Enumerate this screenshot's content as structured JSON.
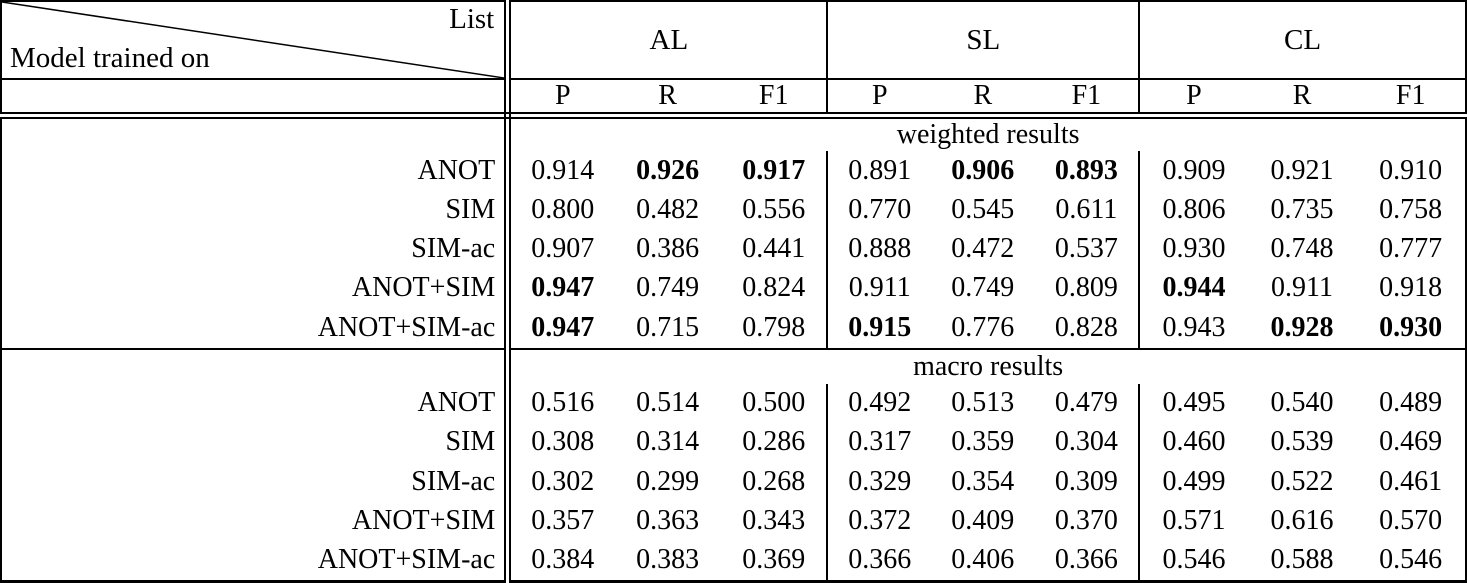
{
  "colors": {
    "background": "#ffffff",
    "text": "#000000",
    "rule": "#000000"
  },
  "table": {
    "corner": {
      "top_label": "List",
      "bottom_label": "Model trained on"
    },
    "groups": [
      "AL",
      "SL",
      "CL"
    ],
    "metrics": [
      "P",
      "R",
      "F1"
    ],
    "sections": [
      {
        "title": "weighted results",
        "rows": [
          {
            "model": "ANOT",
            "cells": [
              {
                "v": "0.914",
                "b": false
              },
              {
                "v": "0.926",
                "b": true
              },
              {
                "v": "0.917",
                "b": true
              },
              {
                "v": "0.891",
                "b": false
              },
              {
                "v": "0.906",
                "b": true
              },
              {
                "v": "0.893",
                "b": true
              },
              {
                "v": "0.909",
                "b": false
              },
              {
                "v": "0.921",
                "b": false
              },
              {
                "v": "0.910",
                "b": false
              }
            ]
          },
          {
            "model": "SIM",
            "cells": [
              {
                "v": "0.800",
                "b": false
              },
              {
                "v": "0.482",
                "b": false
              },
              {
                "v": "0.556",
                "b": false
              },
              {
                "v": "0.770",
                "b": false
              },
              {
                "v": "0.545",
                "b": false
              },
              {
                "v": "0.611",
                "b": false
              },
              {
                "v": "0.806",
                "b": false
              },
              {
                "v": "0.735",
                "b": false
              },
              {
                "v": "0.758",
                "b": false
              }
            ]
          },
          {
            "model": "SIM-ac",
            "cells": [
              {
                "v": "0.907",
                "b": false
              },
              {
                "v": "0.386",
                "b": false
              },
              {
                "v": "0.441",
                "b": false
              },
              {
                "v": "0.888",
                "b": false
              },
              {
                "v": "0.472",
                "b": false
              },
              {
                "v": "0.537",
                "b": false
              },
              {
                "v": "0.930",
                "b": false
              },
              {
                "v": "0.748",
                "b": false
              },
              {
                "v": "0.777",
                "b": false
              }
            ]
          },
          {
            "model": "ANOT+SIM",
            "cells": [
              {
                "v": "0.947",
                "b": true
              },
              {
                "v": "0.749",
                "b": false
              },
              {
                "v": "0.824",
                "b": false
              },
              {
                "v": "0.911",
                "b": false
              },
              {
                "v": "0.749",
                "b": false
              },
              {
                "v": "0.809",
                "b": false
              },
              {
                "v": "0.944",
                "b": true
              },
              {
                "v": "0.911",
                "b": false
              },
              {
                "v": "0.918",
                "b": false
              }
            ]
          },
          {
            "model": "ANOT+SIM-ac",
            "cells": [
              {
                "v": "0.947",
                "b": true
              },
              {
                "v": "0.715",
                "b": false
              },
              {
                "v": "0.798",
                "b": false
              },
              {
                "v": "0.915",
                "b": true
              },
              {
                "v": "0.776",
                "b": false
              },
              {
                "v": "0.828",
                "b": false
              },
              {
                "v": "0.943",
                "b": false
              },
              {
                "v": "0.928",
                "b": true
              },
              {
                "v": "0.930",
                "b": true
              }
            ]
          }
        ]
      },
      {
        "title": "macro results",
        "rows": [
          {
            "model": "ANOT",
            "cells": [
              {
                "v": "0.516",
                "b": false
              },
              {
                "v": "0.514",
                "b": false
              },
              {
                "v": "0.500",
                "b": false
              },
              {
                "v": "0.492",
                "b": false
              },
              {
                "v": "0.513",
                "b": false
              },
              {
                "v": "0.479",
                "b": false
              },
              {
                "v": "0.495",
                "b": false
              },
              {
                "v": "0.540",
                "b": false
              },
              {
                "v": "0.489",
                "b": false
              }
            ]
          },
          {
            "model": "SIM",
            "cells": [
              {
                "v": "0.308",
                "b": false
              },
              {
                "v": "0.314",
                "b": false
              },
              {
                "v": "0.286",
                "b": false
              },
              {
                "v": "0.317",
                "b": false
              },
              {
                "v": "0.359",
                "b": false
              },
              {
                "v": "0.304",
                "b": false
              },
              {
                "v": "0.460",
                "b": false
              },
              {
                "v": "0.539",
                "b": false
              },
              {
                "v": "0.469",
                "b": false
              }
            ]
          },
          {
            "model": "SIM-ac",
            "cells": [
              {
                "v": "0.302",
                "b": false
              },
              {
                "v": "0.299",
                "b": false
              },
              {
                "v": "0.268",
                "b": false
              },
              {
                "v": "0.329",
                "b": false
              },
              {
                "v": "0.354",
                "b": false
              },
              {
                "v": "0.309",
                "b": false
              },
              {
                "v": "0.499",
                "b": false
              },
              {
                "v": "0.522",
                "b": false
              },
              {
                "v": "0.461",
                "b": false
              }
            ]
          },
          {
            "model": "ANOT+SIM",
            "cells": [
              {
                "v": "0.357",
                "b": false
              },
              {
                "v": "0.363",
                "b": false
              },
              {
                "v": "0.343",
                "b": false
              },
              {
                "v": "0.372",
                "b": false
              },
              {
                "v": "0.409",
                "b": false
              },
              {
                "v": "0.370",
                "b": false
              },
              {
                "v": "0.571",
                "b": false
              },
              {
                "v": "0.616",
                "b": false
              },
              {
                "v": "0.570",
                "b": false
              }
            ]
          },
          {
            "model": "ANOT+SIM-ac",
            "cells": [
              {
                "v": "0.384",
                "b": false
              },
              {
                "v": "0.383",
                "b": false
              },
              {
                "v": "0.369",
                "b": false
              },
              {
                "v": "0.366",
                "b": false
              },
              {
                "v": "0.406",
                "b": false
              },
              {
                "v": "0.366",
                "b": false
              },
              {
                "v": "0.546",
                "b": false
              },
              {
                "v": "0.588",
                "b": false
              },
              {
                "v": "0.546",
                "b": false
              }
            ]
          }
        ]
      }
    ]
  }
}
